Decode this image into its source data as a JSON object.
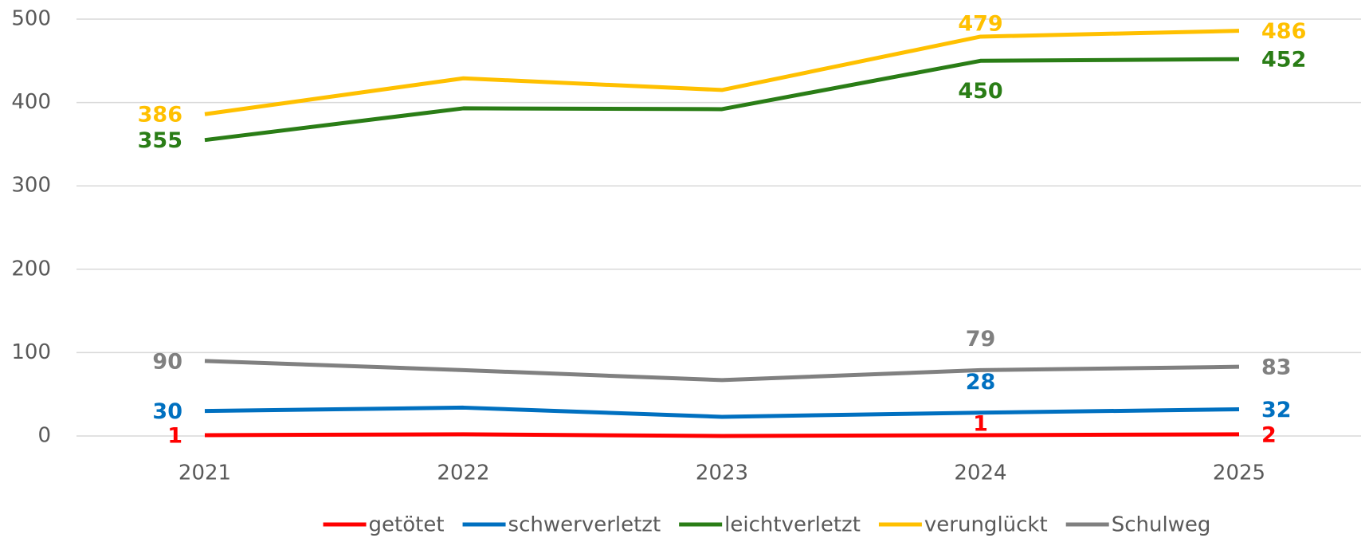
{
  "chart_data": {
    "type": "line",
    "categories": [
      "2021",
      "2022",
      "2023",
      "2024",
      "2025"
    ],
    "ylim": [
      0,
      500
    ],
    "yticks": [
      0,
      100,
      200,
      300,
      400,
      500
    ],
    "grid": true,
    "legend": "bottom",
    "series": [
      {
        "name": "getötet",
        "color": "#ff0000",
        "values": [
          1,
          2,
          0,
          1,
          2
        ],
        "value_labels": [
          "1",
          null,
          null,
          "1",
          "2"
        ]
      },
      {
        "name": "schwerverletzt",
        "color": "#0070c0",
        "values": [
          30,
          34,
          23,
          28,
          32
        ],
        "value_labels": [
          "30",
          null,
          null,
          "28",
          "32"
        ]
      },
      {
        "name": "leichtverletzt",
        "color": "#2a7d16",
        "values": [
          355,
          393,
          392,
          450,
          452
        ],
        "value_labels": [
          "355",
          null,
          null,
          "450",
          "452"
        ]
      },
      {
        "name": "verunglückt",
        "color": "#ffc000",
        "values": [
          386,
          429,
          415,
          479,
          486
        ],
        "value_labels": [
          "386",
          null,
          null,
          "479",
          "486"
        ]
      },
      {
        "name": "Schulweg",
        "color": "#808080",
        "values": [
          90,
          79,
          67,
          79,
          83
        ],
        "value_labels": [
          "90",
          null,
          null,
          "79",
          "83"
        ]
      }
    ]
  }
}
